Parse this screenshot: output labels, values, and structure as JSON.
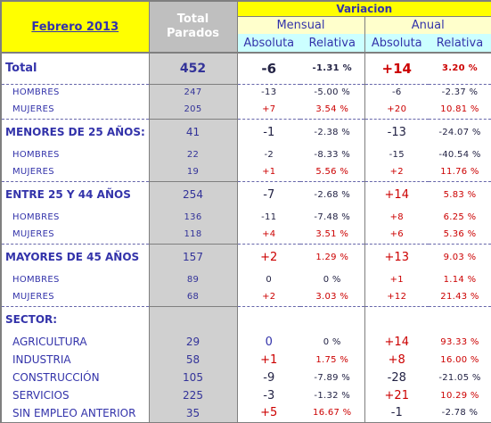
{
  "header": {
    "title": "Febrero 2013",
    "total_line1": "Total",
    "total_line2": "Parados",
    "variacion": "Variacion",
    "mensual": "Mensual",
    "anual": "Anual",
    "absoluta": "Absoluta",
    "relativa": "Relativa"
  },
  "rows": [
    {
      "label": "Total",
      "total": "452",
      "m_abs": "-6",
      "m_rel": "-1.31 %",
      "a_abs": "+14",
      "a_rel": "3.20 %"
    },
    {
      "label": "HOMBRES",
      "total": "247",
      "m_abs": "-13",
      "m_rel": "-5.00 %",
      "a_abs": "-6",
      "a_rel": "-2.37 %"
    },
    {
      "label": "MUJERES",
      "total": "205",
      "m_abs": "+7",
      "m_rel": "3.54 %",
      "a_abs": "+20",
      "a_rel": "10.81 %"
    },
    {
      "label": "MENORES DE 25 AÑOS:",
      "total": "41",
      "m_abs": "-1",
      "m_rel": "-2.38 %",
      "a_abs": "-13",
      "a_rel": "-24.07 %"
    },
    {
      "label": "HOMBRES",
      "total": "22",
      "m_abs": "-2",
      "m_rel": "-8.33 %",
      "a_abs": "-15",
      "a_rel": "-40.54 %"
    },
    {
      "label": "MUJERES",
      "total": "19",
      "m_abs": "+1",
      "m_rel": "5.56 %",
      "a_abs": "+2",
      "a_rel": "11.76 %"
    },
    {
      "label": "ENTRE 25 Y 44 AÑOS",
      "total": "254",
      "m_abs": "-7",
      "m_rel": "-2.68 %",
      "a_abs": "+14",
      "a_rel": "5.83 %"
    },
    {
      "label": "HOMBRES",
      "total": "136",
      "m_abs": "-11",
      "m_rel": "-7.48 %",
      "a_abs": "+8",
      "a_rel": "6.25 %"
    },
    {
      "label": "MUJERES",
      "total": "118",
      "m_abs": "+4",
      "m_rel": "3.51 %",
      "a_abs": "+6",
      "a_rel": "5.36 %"
    },
    {
      "label": "MAYORES DE 45 AÑOS",
      "total": "157",
      "m_abs": "+2",
      "m_rel": "1.29 %",
      "a_abs": "+13",
      "a_rel": "9.03 %"
    },
    {
      "label": "HOMBRES",
      "total": "89",
      "m_abs": "0",
      "m_rel": "0 %",
      "a_abs": "+1",
      "a_rel": "1.14 %"
    },
    {
      "label": "MUJERES",
      "total": "68",
      "m_abs": "+2",
      "m_rel": "3.03 %",
      "a_abs": "+12",
      "a_rel": "21.43 %"
    },
    {
      "label": "SECTOR:",
      "total": "",
      "m_abs": "",
      "m_rel": "",
      "a_abs": "",
      "a_rel": ""
    },
    {
      "label": "AGRICULTURA",
      "total": "29",
      "m_abs": "0",
      "m_rel": "0 %",
      "a_abs": "+14",
      "a_rel": "93.33 %"
    },
    {
      "label": "INDUSTRIA",
      "total": "58",
      "m_abs": "+1",
      "m_rel": "1.75 %",
      "a_abs": "+8",
      "a_rel": "16.00 %"
    },
    {
      "label": "CONSTRUCCIÓN",
      "total": "105",
      "m_abs": "-9",
      "m_rel": "-7.89 %",
      "a_abs": "-28",
      "a_rel": "-21.05 %"
    },
    {
      "label": "SERVICIOS",
      "total": "225",
      "m_abs": "-3",
      "m_rel": "-1.32 %",
      "a_abs": "+21",
      "a_rel": "10.29 %"
    },
    {
      "label": "SIN EMPLEO ANTERIOR",
      "total": "35",
      "m_abs": "+5",
      "m_rel": "16.67 %",
      "a_abs": "-1",
      "a_rel": "-2.78 %"
    }
  ],
  "colors": {
    "header_yellow": "#ffff00",
    "period_bg": "#ffffcc",
    "subheader_bg": "#ccffff",
    "total_col_bg": "#d0d0d0",
    "label_blue": "#3333aa",
    "positive_red": "#cc0000"
  }
}
